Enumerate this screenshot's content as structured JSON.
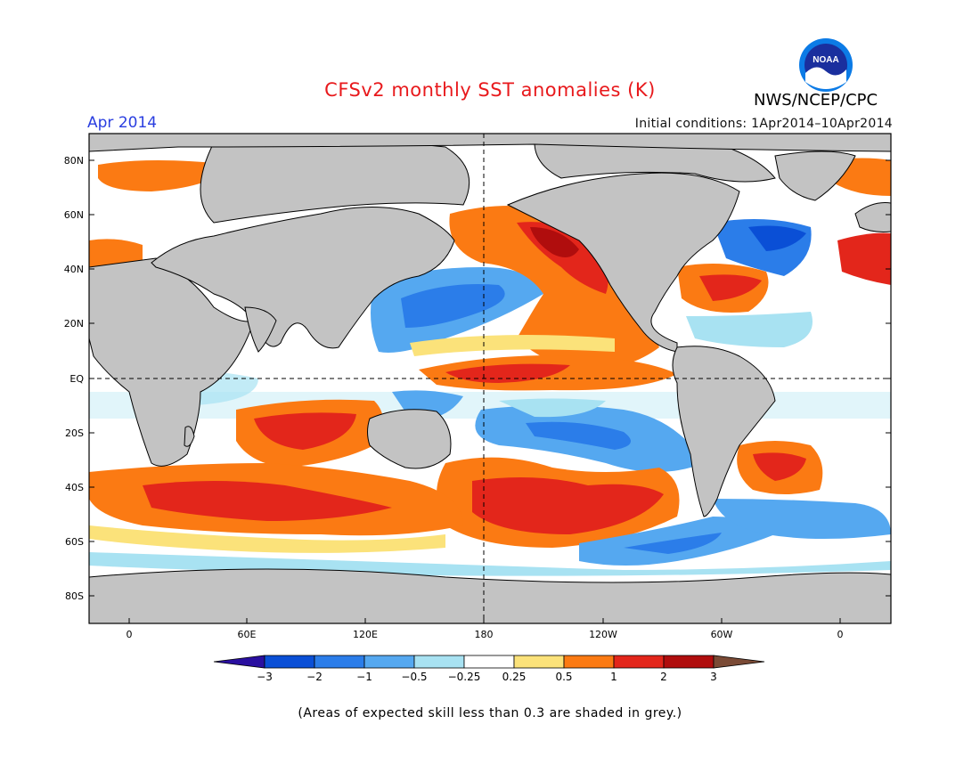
{
  "header": {
    "title": "CFSv2 monthly SST anomalies (K)",
    "month": "Apr 2014",
    "initial_conditions": "Initial conditions: 1Apr2014–10Apr2014",
    "agency": "NWS/NCEP/CPC",
    "logo_text": "NOAA"
  },
  "map": {
    "lat_labels": [
      "80N",
      "60N",
      "40N",
      "20N",
      "EQ",
      "20S",
      "40S",
      "60S",
      "80S"
    ],
    "lon_labels": [
      "0",
      "60E",
      "120E",
      "180",
      "120W",
      "60W",
      "0"
    ],
    "land_color": "#c3c3c3",
    "background": "#ffffff"
  },
  "colorbar": {
    "labels": [
      "−3",
      "−2",
      "−1",
      "−0.5",
      "−0.25",
      "0.25",
      "0.5",
      "1",
      "2",
      "3"
    ],
    "colors": [
      "#2a0fa0",
      "#0a4fd6",
      "#2b7de9",
      "#55a8f0",
      "#a8e2f2",
      "#ffffff",
      "#fbe27a",
      "#fb7a13",
      "#e3261b",
      "#b00d0d",
      "#7a4a35"
    ]
  },
  "footnote": "(Areas of expected skill less than 0.3 are shaded in grey.)"
}
